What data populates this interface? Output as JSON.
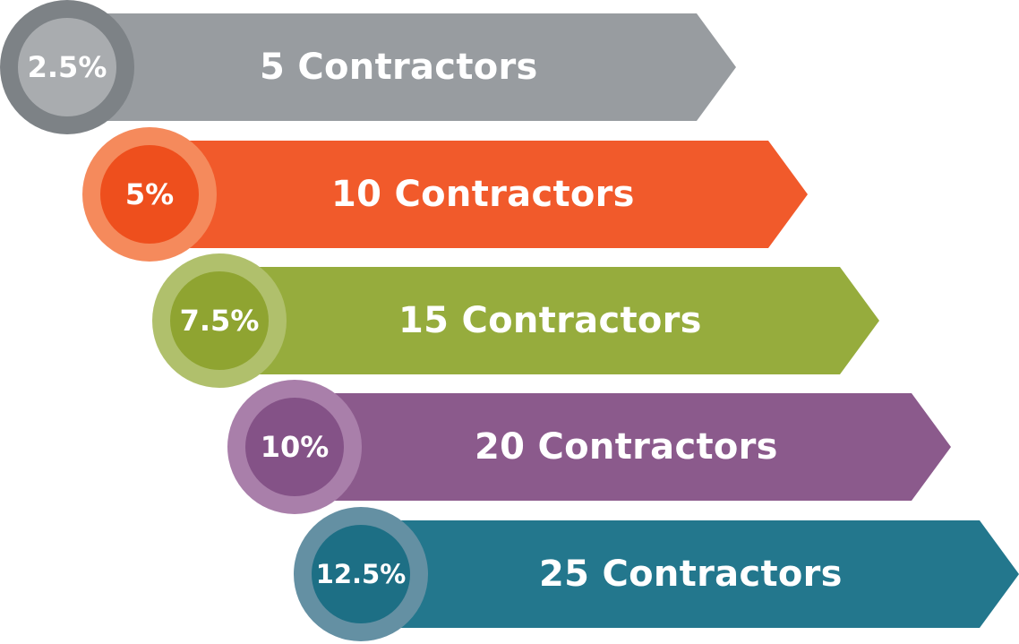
{
  "steps": [
    {
      "percent": "2.5%",
      "label": "5 Contractors",
      "colors": {
        "arrow": "#989CA0",
        "ring": "#7D8286",
        "inner": "#A9ACAF"
      }
    },
    {
      "percent": "5%",
      "label": "10 Contractors",
      "colors": {
        "arrow": "#F15A2B",
        "ring": "#F58A5C",
        "inner": "#EE4F1D"
      }
    },
    {
      "percent": "7.5%",
      "label": "15 Contractors",
      "colors": {
        "arrow": "#96AC3D",
        "ring": "#B0C06C",
        "inner": "#8FA431"
      }
    },
    {
      "percent": "10%",
      "label": "20 Contractors",
      "colors": {
        "arrow": "#8B5A8C",
        "ring": "#A97FAA",
        "inner": "#845287"
      }
    },
    {
      "percent": "12.5%",
      "label": "25 Contractors",
      "colors": {
        "arrow": "#23778D",
        "ring": "#6490A3",
        "inner": "#1D6F85"
      }
    }
  ]
}
